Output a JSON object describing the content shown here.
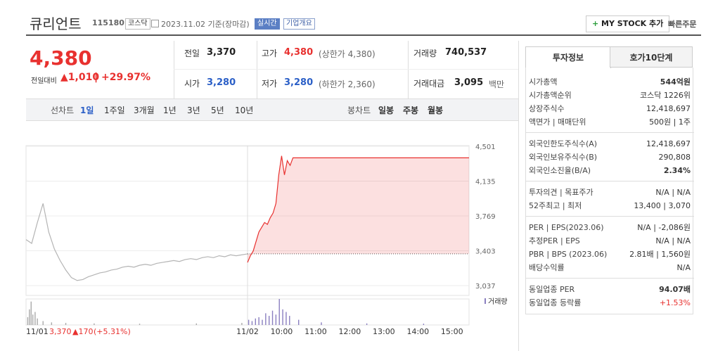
{
  "header": {
    "name": "큐리언트",
    "code": "115180",
    "market": "코스닥",
    "date": "2023.11.02 기준(장마감)",
    "realtime": "실시간",
    "company_info": "기업개요",
    "mystock": "MY STOCK 추가",
    "quick_order": "빠른주문"
  },
  "price": {
    "current": "4,380",
    "change_label": "전일대비",
    "change": "1,010",
    "rate": "+29.97%"
  },
  "summary": [
    {
      "label": "전일",
      "value": "3,370"
    },
    {
      "label": "고가",
      "value": "4,380",
      "note": "(상한가 4,380)"
    },
    {
      "label": "거래량",
      "value": "740,537"
    },
    {
      "label": "시가",
      "value": "3,280"
    },
    {
      "label": "저가",
      "value": "3,280",
      "note": "(하한가 2,360)"
    },
    {
      "label": "거래대금",
      "value": "3,095",
      "note": "백만"
    }
  ],
  "tabs": {
    "line_label": "선차트",
    "periods": [
      "1일",
      "1주일",
      "3개월",
      "1년",
      "3년",
      "5년",
      "10년"
    ],
    "candle_label": "봉차트",
    "candles": [
      "일봉",
      "주봉",
      "월봉"
    ]
  },
  "chart_data": {
    "type": "line",
    "xlim": [
      0,
      780
    ],
    "ylim": [
      2933,
      4634
    ],
    "xticks": [
      {
        "value": 0,
        "label": "11/01"
      },
      {
        "value": 390,
        "label": "11/02"
      },
      {
        "value": 450,
        "label": "10:00"
      },
      {
        "value": 510,
        "label": "11:00"
      },
      {
        "value": 570,
        "label": "12:00"
      },
      {
        "value": 630,
        "label": "13:00"
      },
      {
        "value": 690,
        "label": "14:00"
      },
      {
        "value": 750,
        "label": "15:00"
      }
    ],
    "yticks": [
      {
        "value": 4501,
        "label": "4,501"
      },
      {
        "value": 4135,
        "label": "4,135"
      },
      {
        "value": 3769,
        "label": "3,769"
      },
      {
        "value": 3403,
        "label": "3,403"
      },
      {
        "value": 3037,
        "label": "3,037"
      }
    ],
    "baseline": 3370,
    "series": [
      {
        "color": "#b4b4b4",
        "x": [
          0,
          10,
          20,
          30,
          40,
          50,
          60,
          70,
          80,
          90,
          100,
          110,
          120,
          130,
          140,
          150,
          160,
          170,
          180,
          190,
          200,
          210,
          220,
          230,
          240,
          250,
          260,
          270,
          280,
          290,
          300,
          310,
          320,
          330,
          340,
          350,
          360,
          370,
          380,
          390
        ],
        "values": [
          3520,
          3480,
          3700,
          3900,
          3600,
          3420,
          3300,
          3200,
          3120,
          3090,
          3100,
          3130,
          3150,
          3170,
          3180,
          3200,
          3210,
          3230,
          3240,
          3230,
          3250,
          3260,
          3250,
          3270,
          3280,
          3290,
          3300,
          3290,
          3310,
          3320,
          3310,
          3330,
          3340,
          3330,
          3350,
          3340,
          3360,
          3350,
          3360,
          3370
        ]
      },
      {
        "color": "#e8312f",
        "x": [
          390,
          395,
          400,
          405,
          410,
          415,
          420,
          425,
          430,
          435,
          440,
          445,
          450,
          455,
          460,
          465,
          470,
          480,
          780
        ],
        "values": [
          3280,
          3350,
          3400,
          3500,
          3600,
          3650,
          3700,
          3680,
          3750,
          3800,
          3900,
          4200,
          4400,
          4200,
          4350,
          4300,
          4380,
          4380,
          4380
        ]
      }
    ],
    "volume": {
      "name": "거래량",
      "ylim": [
        0,
        100
      ],
      "x": [
        3,
        6,
        9,
        12,
        16,
        20,
        30,
        45,
        70,
        120,
        200,
        300,
        380,
        392,
        398,
        404,
        410,
        416,
        422,
        428,
        434,
        440,
        446,
        452,
        458,
        464,
        480,
        520,
        600,
        700
      ],
      "values": [
        30,
        60,
        90,
        40,
        50,
        25,
        15,
        10,
        8,
        6,
        5,
        6,
        8,
        20,
        15,
        25,
        30,
        20,
        45,
        35,
        55,
        40,
        100,
        60,
        50,
        35,
        20,
        10,
        6,
        5
      ]
    },
    "footer": {
      "price": "3,370",
      "change": "▲170",
      "rate": "(+5.31%)"
    }
  },
  "panel": {
    "tabs": [
      "투자정보",
      "호가10단계"
    ],
    "sections": [
      [
        {
          "label": "시가총액",
          "value": "544억원"
        },
        {
          "label": "시가총액순위",
          "value": "코스닥 1226위"
        },
        {
          "label": "상장주식수",
          "value": "12,418,697"
        },
        {
          "label": "액면가 | 매매단위",
          "value": "500원 | 1주"
        }
      ],
      [
        {
          "label": "외국인한도주식수(A)",
          "value": "12,418,697"
        },
        {
          "label": "외국인보유주식수(B)",
          "value": "290,808"
        },
        {
          "label": "외국인소진율(B/A)",
          "value": "2.34%"
        }
      ],
      [
        {
          "label": "투자의견 | 목표주가",
          "value": "N/A | N/A"
        },
        {
          "label": "52주최고 | 최저",
          "value": "13,400 | 3,070"
        }
      ],
      [
        {
          "label": "PER | EPS(2023.06)",
          "value": "N/A | -2,086원"
        },
        {
          "label": "추정PER | EPS",
          "value": "N/A | N/A"
        },
        {
          "label": "PBR | BPS (2023.06)",
          "value": "2.81배 | 1,560원"
        },
        {
          "label": "배당수익률",
          "value": "N/A"
        }
      ],
      [
        {
          "label": "동일업종 PER",
          "value": "94.07배"
        },
        {
          "label": "동일업종 등락률",
          "value": "+1.53%"
        }
      ]
    ]
  }
}
